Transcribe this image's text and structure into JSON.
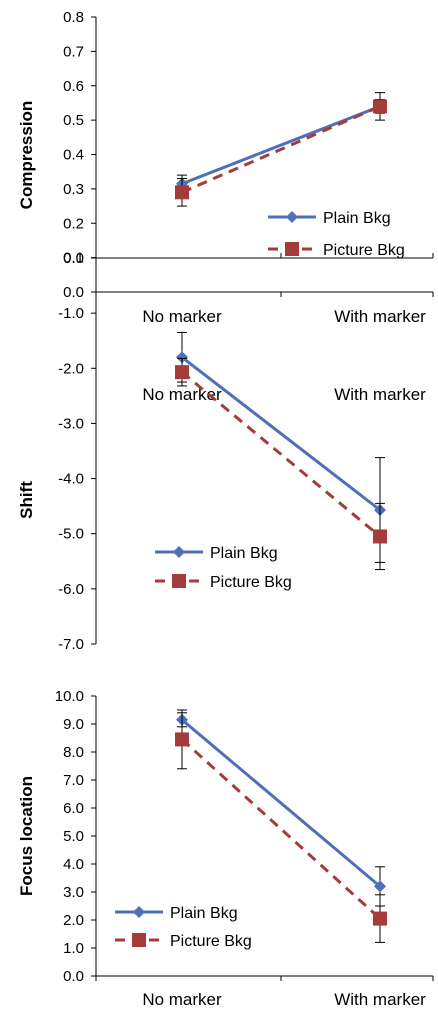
{
  "colors": {
    "plain": "#4f6fb8",
    "picture": "#a33c3a",
    "axis": "#000000",
    "error_bar": "#000000"
  },
  "chart_data": [
    {
      "type": "line",
      "title": "",
      "xlabel": "",
      "ylabel": "Compression",
      "ylim": [
        0.0,
        0.8
      ],
      "yticks": [
        "0.0",
        "0.1",
        "0.2",
        "0.3",
        "0.4",
        "0.5",
        "0.6",
        "0.7",
        "0.8"
      ],
      "categories": [
        "No marker",
        "With marker"
      ],
      "x_labels_position": "bottom",
      "grid": false,
      "legend_position": "bottom-right",
      "series": [
        {
          "name": "Plain Bkg",
          "values": [
            0.315,
            0.54
          ],
          "error": [
            0.025,
            0.02
          ],
          "marker": "diamond",
          "style": "solid"
        },
        {
          "name": "Picture Bkg",
          "values": [
            0.29,
            0.54
          ],
          "error": [
            0.04,
            0.04
          ],
          "marker": "square",
          "style": "dashed"
        }
      ]
    },
    {
      "type": "line",
      "title": "",
      "xlabel": "",
      "ylabel": "Shift",
      "ylim": [
        -7.0,
        0.0
      ],
      "yticks": [
        "-7.0",
        "-6.0",
        "-5.0",
        "-4.0",
        "-3.0",
        "-2.0",
        "-1.0",
        "0.0"
      ],
      "categories": [
        "No marker",
        "With marker"
      ],
      "x_labels_position": "top",
      "grid": false,
      "legend_position": "bottom-center",
      "series": [
        {
          "name": "Plain Bkg",
          "values": [
            -1.8,
            -4.57
          ],
          "error": [
            0.45,
            0.95
          ],
          "marker": "diamond",
          "style": "solid"
        },
        {
          "name": "Picture Bkg",
          "values": [
            -2.07,
            -5.05
          ],
          "error": [
            0.25,
            0.6
          ],
          "marker": "square",
          "style": "dashed"
        }
      ]
    },
    {
      "type": "line",
      "title": "",
      "xlabel": "",
      "ylabel": "Focus location",
      "ylim": [
        0.0,
        10.0
      ],
      "yticks": [
        "0.0",
        "1.0",
        "2.0",
        "3.0",
        "4.0",
        "5.0",
        "6.0",
        "7.0",
        "8.0",
        "9.0",
        "10.0"
      ],
      "categories": [
        "No marker",
        "With marker"
      ],
      "x_labels_position": "bottom",
      "grid": false,
      "legend_position": "bottom-left",
      "series": [
        {
          "name": "Plain Bkg",
          "values": [
            9.15,
            3.2
          ],
          "error": [
            0.25,
            0.7
          ],
          "marker": "diamond",
          "style": "solid"
        },
        {
          "name": "Picture Bkg",
          "values": [
            8.45,
            2.05
          ],
          "error": [
            1.05,
            0.85
          ],
          "marker": "square",
          "style": "dashed"
        }
      ]
    }
  ]
}
